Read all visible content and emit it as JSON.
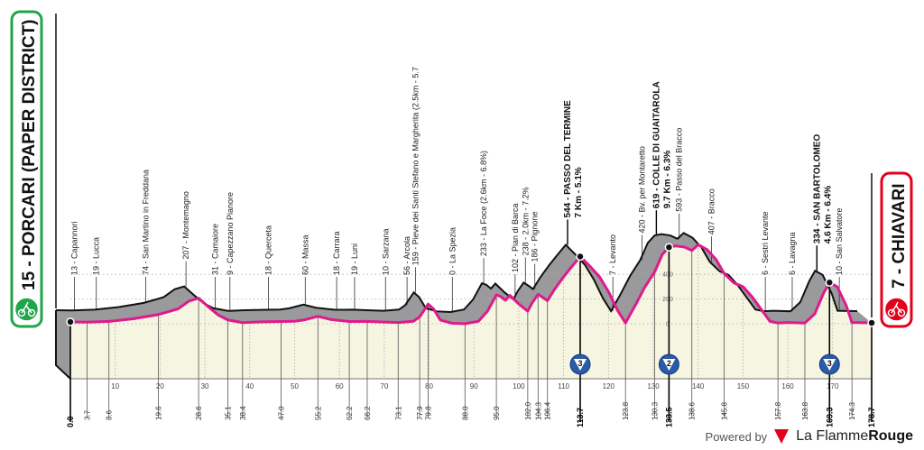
{
  "start": {
    "label": "15 - PORCARI (PAPER DISTRICT)",
    "color": "#1fa64a",
    "icon": "cyclist-icon"
  },
  "finish": {
    "label": "7 - CHIAVARI",
    "color": "#e3001b",
    "icon": "cyclist-icon"
  },
  "footer": {
    "powered_by": "Powered by",
    "brand_a": "La Flamme",
    "brand_b": "Rouge"
  },
  "chart_data": {
    "type": "area",
    "title": "",
    "xlabel": "",
    "ylabel": "",
    "xlim": [
      0,
      178.7
    ],
    "ylim": [
      0,
      650
    ],
    "x_ticks": [
      0,
      10,
      20,
      30,
      40,
      50,
      60,
      70,
      80,
      90,
      100,
      110,
      120,
      130,
      140,
      150,
      160,
      170
    ],
    "y_ticks": [
      "0",
      "200",
      "400"
    ],
    "colors": {
      "road": "#e0198c",
      "relief": "#9a9a9c",
      "ground": "#f6f5e1",
      "climb_badge": "#2a5aa8"
    },
    "profile": [
      [
        0,
        15
      ],
      [
        3.7,
        13
      ],
      [
        8.6,
        19
      ],
      [
        14,
        40
      ],
      [
        19.6,
        74
      ],
      [
        24,
        120
      ],
      [
        26.5,
        185
      ],
      [
        28.6,
        207
      ],
      [
        31,
        130
      ],
      [
        33,
        70
      ],
      [
        35.1,
        31
      ],
      [
        38.4,
        9
      ],
      [
        42,
        15
      ],
      [
        47.0,
        18
      ],
      [
        50,
        20
      ],
      [
        52,
        30
      ],
      [
        55.2,
        60
      ],
      [
        58,
        35
      ],
      [
        62.2,
        18
      ],
      [
        66.2,
        19
      ],
      [
        70,
        14
      ],
      [
        73.1,
        10
      ],
      [
        76.5,
        20
      ],
      [
        77.9,
        56
      ],
      [
        79.8,
        159
      ],
      [
        81,
        120
      ],
      [
        82.5,
        30
      ],
      [
        85,
        5
      ],
      [
        88.0,
        0
      ],
      [
        91,
        20
      ],
      [
        93,
        100
      ],
      [
        95.0,
        233
      ],
      [
        96,
        220
      ],
      [
        97,
        190
      ],
      [
        98,
        230
      ],
      [
        100,
        160
      ],
      [
        102.0,
        102
      ],
      [
        103,
        170
      ],
      [
        104.3,
        238
      ],
      [
        105.5,
        210
      ],
      [
        106.4,
        186
      ],
      [
        108,
        280
      ],
      [
        110,
        380
      ],
      [
        112,
        470
      ],
      [
        113.7,
        544
      ],
      [
        116,
        460
      ],
      [
        118,
        380
      ],
      [
        120,
        260
      ],
      [
        122,
        110
      ],
      [
        123.8,
        7
      ],
      [
        126,
        150
      ],
      [
        128,
        290
      ],
      [
        130.3,
        420
      ],
      [
        132,
        560
      ],
      [
        133.5,
        619
      ],
      [
        135,
        630
      ],
      [
        137,
        620
      ],
      [
        138.6,
        593
      ],
      [
        140,
        640
      ],
      [
        142,
        600
      ],
      [
        144,
        520
      ],
      [
        145.8,
        407
      ],
      [
        148,
        330
      ],
      [
        150,
        300
      ],
      [
        152,
        220
      ],
      [
        154,
        120
      ],
      [
        156,
        20
      ],
      [
        157.8,
        6
      ],
      [
        160,
        10
      ],
      [
        163.8,
        6
      ],
      [
        166,
        80
      ],
      [
        168,
        250
      ],
      [
        169.3,
        334
      ],
      [
        171,
        300
      ],
      [
        173,
        150
      ],
      [
        174.3,
        10
      ],
      [
        178.7,
        7
      ]
    ],
    "waypoints": [
      {
        "km": "0.0",
        "elev": 15,
        "name": "",
        "bold": true
      },
      {
        "km": "3.7",
        "elev": 13,
        "name": "13 - Capannori"
      },
      {
        "km": "8.6",
        "elev": 19,
        "name": "19 - Lucca"
      },
      {
        "km": "19.6",
        "elev": 74,
        "name": "74 - San Martino in Freddana"
      },
      {
        "km": "28.6",
        "elev": 207,
        "name": "207 - Montemagno"
      },
      {
        "km": "35.1",
        "elev": 31,
        "name": "31 - Camaiore"
      },
      {
        "km": "38.4",
        "elev": 9,
        "name": "9 - Capezzano Pianore"
      },
      {
        "km": "47.0",
        "elev": 18,
        "name": "18 - Querceta"
      },
      {
        "km": "55.2",
        "elev": 60,
        "name": "60 - Massa"
      },
      {
        "km": "62.2",
        "elev": 18,
        "name": "18 - Carrara"
      },
      {
        "km": "66.2",
        "elev": 19,
        "name": "19 - Luni"
      },
      {
        "km": "73.1",
        "elev": 10,
        "name": "10 - Sarzana"
      },
      {
        "km": "77.9",
        "elev": 56,
        "name": "56 - Arcola"
      },
      {
        "km": "79.8",
        "elev": 159,
        "name": "159 - Pieve dei Santi Stefano e Margherita (2.5km - 5.7"
      },
      {
        "km": "88.0",
        "elev": 0,
        "name": "0 - La Spezia"
      },
      {
        "km": "95.0",
        "elev": 233,
        "name": "233 - La Foce (2.6km - 6.8%)"
      },
      {
        "km": "102.0",
        "elev": 102,
        "name": "102 - Pian di Barca"
      },
      {
        "km": "104.3",
        "elev": 238,
        "name": "238 - 2.0km - 7.2%"
      },
      {
        "km": "106.4",
        "elev": 186,
        "name": "186 - Pignone"
      },
      {
        "km": "113.7",
        "elev": 544,
        "name": "544 - PASSO DEL TERMINE",
        "sub": "7 Km - 5.1%",
        "bold": true,
        "category": "3"
      },
      {
        "km": "123.8",
        "elev": 7,
        "name": "7 - Levanto"
      },
      {
        "km": "130.3",
        "elev": 420,
        "name": "420 - Bv. per Montaretto"
      },
      {
        "km": "133.5",
        "elev": 619,
        "name": "619 - COLLE DI GUAITAROLA",
        "sub": "9.7 Km - 6.3%",
        "bold": true,
        "category": "2"
      },
      {
        "km": "138.6",
        "elev": 593,
        "name": "593 - Passo del Bracco"
      },
      {
        "km": "145.8",
        "elev": 407,
        "name": "407 - Bracco"
      },
      {
        "km": "157.8",
        "elev": 6,
        "name": "6 - Sestri Levante"
      },
      {
        "km": "163.8",
        "elev": 6,
        "name": "6 - Lavagna"
      },
      {
        "km": "169.3",
        "elev": 334,
        "name": "334 - SAN BARTOLOMEO",
        "sub": "4.6 Km - 6.4%",
        "bold": true,
        "category": "3"
      },
      {
        "km": "174.3",
        "elev": 10,
        "name": "10 - San Salvatore"
      },
      {
        "km": "178.7",
        "elev": 7,
        "name": "",
        "bold": true
      }
    ]
  }
}
